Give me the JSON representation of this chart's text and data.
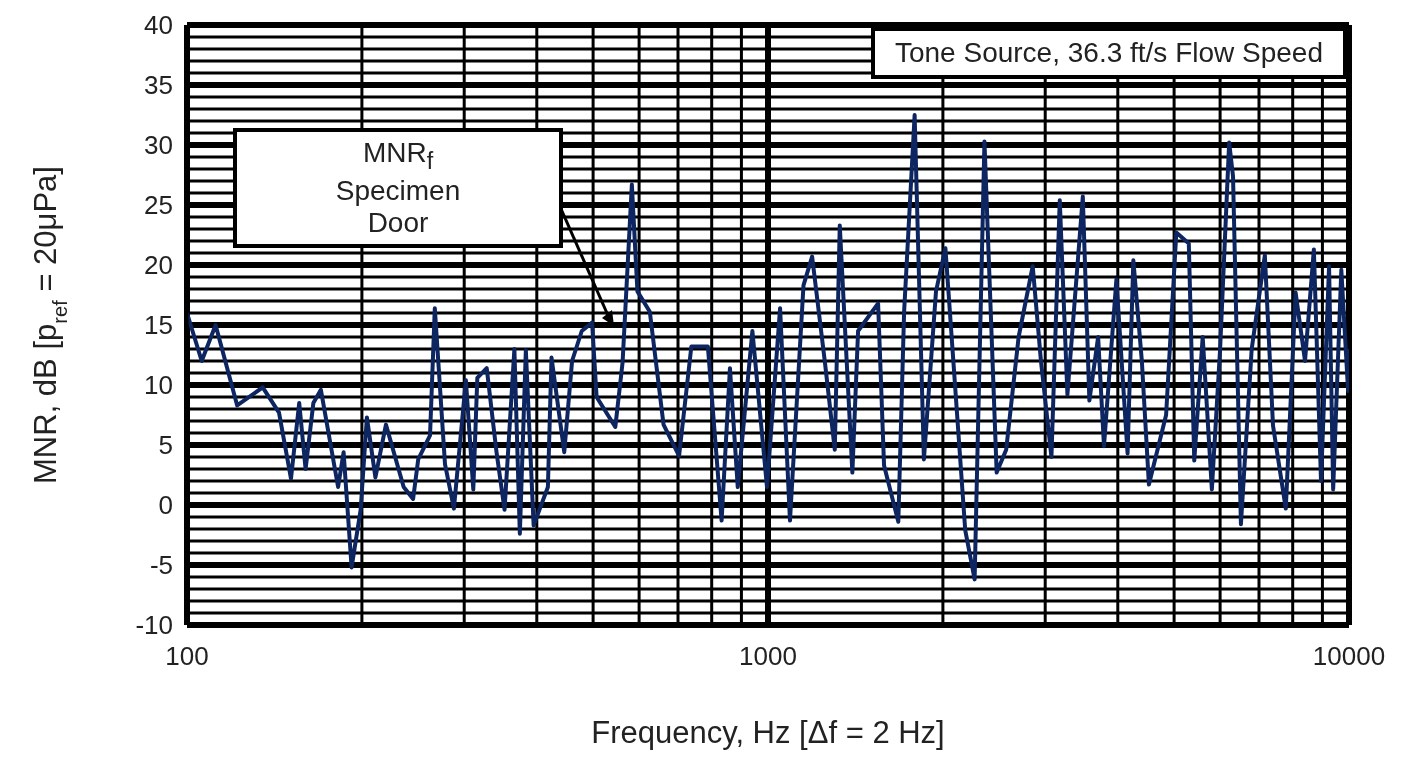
{
  "chart_data": {
    "type": "line",
    "xlabel": "Frequency, Hz [Δf = 2 Hz]",
    "ylabel": "MNR, dB [p$_{ref}$ = 20μPa]",
    "annotations": [
      "Tone Source, 36.3 ft/s Flow Speed",
      "MNR$_{f}$ Specimen Door"
    ],
    "log": "x",
    "grid": true,
    "marker": "none",
    "line_style": "solid",
    "xlim": [
      100,
      10000
    ],
    "xticks": [
      100,
      {
        "value": 200,
        "label": null
      },
      {
        "value": 300,
        "label": null
      },
      {
        "value": 400,
        "label": null
      },
      {
        "value": 500,
        "label": null
      },
      {
        "value": 600,
        "label": null
      },
      {
        "value": 700,
        "label": null
      },
      {
        "value": 800,
        "label": null
      },
      {
        "value": 900,
        "label": null
      },
      1000,
      {
        "value": 2000,
        "label": null
      },
      {
        "value": 3000,
        "label": null
      },
      {
        "value": 4000,
        "label": null
      },
      {
        "value": 5000,
        "label": null
      },
      {
        "value": 6000,
        "label": null
      },
      {
        "value": 7000,
        "label": null
      },
      {
        "value": 8000,
        "label": null
      },
      {
        "value": 9000,
        "label": null
      },
      10000
    ],
    "ylim": [
      -10,
      40
    ],
    "yticks": [
      -10,
      {
        "value": -9,
        "label": null
      },
      {
        "value": -8,
        "label": null
      },
      {
        "value": -7,
        "label": null
      },
      {
        "value": -6,
        "label": null
      },
      -5,
      {
        "value": -4,
        "label": null
      },
      {
        "value": -3,
        "label": null
      },
      {
        "value": -2,
        "label": null
      },
      {
        "value": -1,
        "label": null
      },
      0,
      {
        "value": 1,
        "label": null
      },
      {
        "value": 2,
        "label": null
      },
      {
        "value": 3,
        "label": null
      },
      {
        "value": 4,
        "label": null
      },
      5,
      {
        "value": 6,
        "label": null
      },
      {
        "value": 7,
        "label": null
      },
      {
        "value": 8,
        "label": null
      },
      {
        "value": 9,
        "label": null
      },
      10,
      {
        "value": 11,
        "label": null
      },
      {
        "value": 12,
        "label": null
      },
      {
        "value": 13,
        "label": null
      },
      {
        "value": 14,
        "label": null
      },
      15,
      {
        "value": 16,
        "label": null
      },
      {
        "value": 17,
        "label": null
      },
      {
        "value": 18,
        "label": null
      },
      {
        "value": 19,
        "label": null
      },
      20,
      {
        "value": 21,
        "label": null
      },
      {
        "value": 22,
        "label": null
      },
      {
        "value": 23,
        "label": null
      },
      {
        "value": 24,
        "label": null
      },
      25,
      {
        "value": 26,
        "label": null
      },
      {
        "value": 27,
        "label": null
      },
      {
        "value": 28,
        "label": null
      },
      {
        "value": 29,
        "label": null
      },
      30,
      {
        "value": 31,
        "label": null
      },
      {
        "value": 32,
        "label": null
      },
      {
        "value": 33,
        "label": null
      },
      {
        "value": 34,
        "label": null
      },
      35,
      {
        "value": 36,
        "label": null
      },
      {
        "value": 37,
        "label": null
      },
      {
        "value": 38,
        "label": null
      },
      {
        "value": 39,
        "label": null
      },
      40
    ],
    "series": [
      {
        "color": "#0d2561",
        "x": [
          100,
          106,
          112,
          122,
          135,
          144,
          151,
          156,
          160,
          165,
          170,
          182,
          186,
          192,
          199,
          204,
          211,
          220,
          236,
          245,
          250,
          262,
          267,
          278,
          288,
          302,
          311,
          316,
          328,
          341,
          352,
          366,
          374,
          383,
          395,
          418,
          424,
          446,
          460,
          478,
          498,
          507,
          546,
          562,
          583,
          596,
          626,
          661,
          703,
          738,
          788,
          832,
          860,
          887,
          940,
          996,
          1049,
          1091,
          1151,
          1191,
          1253,
          1303,
          1329,
          1397,
          1429,
          1547,
          1584,
          1676,
          1715,
          1788,
          1855,
          1946,
          2020,
          2185,
          2268,
          2358,
          2475,
          2570,
          2700,
          2855,
          2950,
          3075,
          3178,
          3276,
          3482,
          3574,
          3700,
          3787,
          3978,
          4158,
          4254,
          4400,
          4525,
          4844,
          5044,
          5300,
          5416,
          5600,
          5807,
          6000,
          6219,
          6315,
          6516,
          6800,
          7164,
          7400,
          7784,
          8093,
          8400,
          8700,
          8950,
          9240,
          9392,
          9700,
          9964,
          10000
        ],
        "values": [
          16,
          12,
          15,
          8.3,
          9.8,
          7.7,
          2.2,
          8.5,
          3,
          8.5,
          9.6,
          1.5,
          4.4,
          -5.2,
          -0.4,
          7.3,
          2.3,
          6.7,
          1.5,
          0.5,
          3.8,
          5.8,
          16.4,
          3.4,
          -0.3,
          10.4,
          1.3,
          10.6,
          11.4,
          4.4,
          -0.4,
          13,
          -2.4,
          12.9,
          -1.7,
          1.5,
          12.3,
          4.4,
          12,
          14.5,
          15.2,
          9,
          6.5,
          11.9,
          26.7,
          17.8,
          16.1,
          6.7,
          4.1,
          13.2,
          13.2,
          -1.3,
          11.4,
          1.5,
          14.5,
          1.5,
          16.4,
          -1.3,
          18.3,
          20.7,
          11.9,
          4.6,
          23.3,
          2.7,
          14.5,
          16.8,
          3.3,
          -1.4,
          16.1,
          32.5,
          3.8,
          17.8,
          21.4,
          -2.1,
          -6.2,
          30.3,
          2.7,
          4.6,
          14,
          19.9,
          12,
          4,
          25.4,
          9.2,
          25.7,
          8.7,
          14,
          4.9,
          18.8,
          4.3,
          20.4,
          12,
          1.7,
          7.5,
          22.7,
          21.8,
          3.7,
          14,
          1.3,
          13,
          30.2,
          27.4,
          -1.6,
          13,
          20.8,
          6.6,
          -0.3,
          17.7,
          12,
          21.3,
          2,
          19.9,
          1.3,
          19.6,
          9.5,
          13
        ]
      }
    ]
  }
}
